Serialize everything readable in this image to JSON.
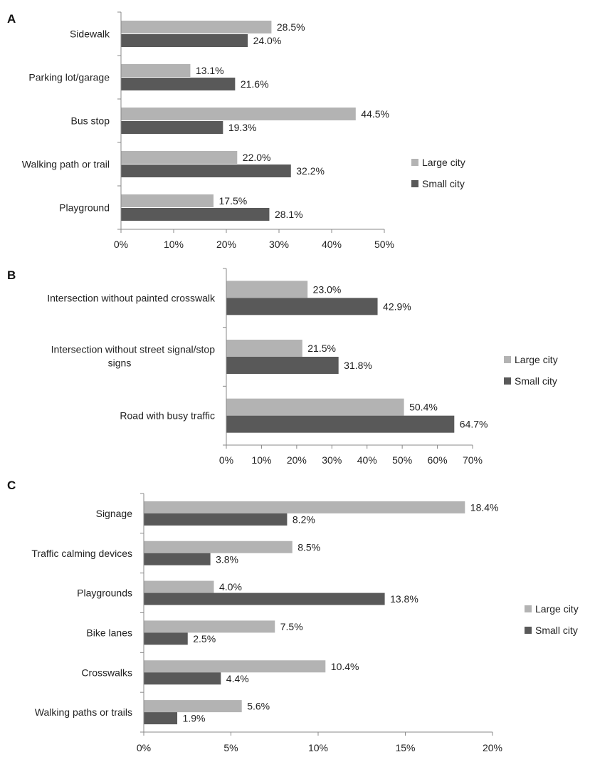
{
  "colors": {
    "large_city": "#b3b3b3",
    "small_city": "#595959"
  },
  "chart_data": [
    {
      "type": "bar",
      "orientation": "horizontal",
      "panel": "A",
      "categories": [
        "Sidewalk",
        "Parking lot/garage",
        "Bus stop",
        "Walking path or trail",
        "Playground"
      ],
      "series": [
        {
          "name": "Large city",
          "values": [
            28.5,
            13.1,
            44.5,
            22.0,
            17.5
          ],
          "labels": [
            "28.5%",
            "13.1%",
            "44.5%",
            "22.0%",
            "17.5%"
          ]
        },
        {
          "name": "Small city",
          "values": [
            24.0,
            21.6,
            19.3,
            32.2,
            28.1
          ],
          "labels": [
            "24.0%",
            "21.6%",
            "19.3%",
            "32.2%",
            "28.1%"
          ]
        }
      ],
      "xlim": [
        0,
        50
      ],
      "ticks": [
        "0%",
        "10%",
        "20%",
        "30%",
        "40%",
        "50%"
      ],
      "legend": "right",
      "grid": false
    },
    {
      "type": "bar",
      "orientation": "horizontal",
      "panel": "B",
      "categories": [
        "Intersection without painted crosswalk",
        "Intersection without street signal/stop signs",
        "Road with busy traffic"
      ],
      "category_lines": [
        [
          "Intersection without painted crosswalk"
        ],
        [
          "Intersection without street signal/stop",
          "signs"
        ],
        [
          "Road with busy traffic"
        ]
      ],
      "series": [
        {
          "name": "Large city",
          "values": [
            23.0,
            21.5,
            50.4
          ],
          "labels": [
            "23.0%",
            "21.5%",
            "50.4%"
          ]
        },
        {
          "name": "Small city",
          "values": [
            42.9,
            31.8,
            64.7
          ],
          "labels": [
            "42.9%",
            "31.8%",
            "64.7%"
          ]
        }
      ],
      "xlim": [
        0,
        70
      ],
      "ticks": [
        "0%",
        "10%",
        "20%",
        "30%",
        "40%",
        "50%",
        "60%",
        "70%"
      ],
      "legend": "right",
      "grid": false
    },
    {
      "type": "bar",
      "orientation": "horizontal",
      "panel": "C",
      "categories": [
        "Signage",
        "Traffic calming devices",
        "Playgrounds",
        "Bike lanes",
        "Crosswalks",
        "Walking paths or trails"
      ],
      "series": [
        {
          "name": "Large city",
          "values": [
            18.4,
            8.5,
            4.0,
            7.5,
            10.4,
            5.6
          ],
          "labels": [
            "18.4%",
            "8.5%",
            "4.0%",
            "7.5%",
            "10.4%",
            "5.6%"
          ]
        },
        {
          "name": "Small city",
          "values": [
            8.2,
            3.8,
            13.8,
            2.5,
            4.4,
            1.9
          ],
          "labels": [
            "8.2%",
            "3.8%",
            "13.8%",
            "2.5%",
            "4.4%",
            "1.9%"
          ]
        }
      ],
      "xlim": [
        0,
        20
      ],
      "ticks": [
        "0%",
        "5%",
        "10%",
        "15%",
        "20%"
      ],
      "legend": "right",
      "grid": false
    }
  ]
}
